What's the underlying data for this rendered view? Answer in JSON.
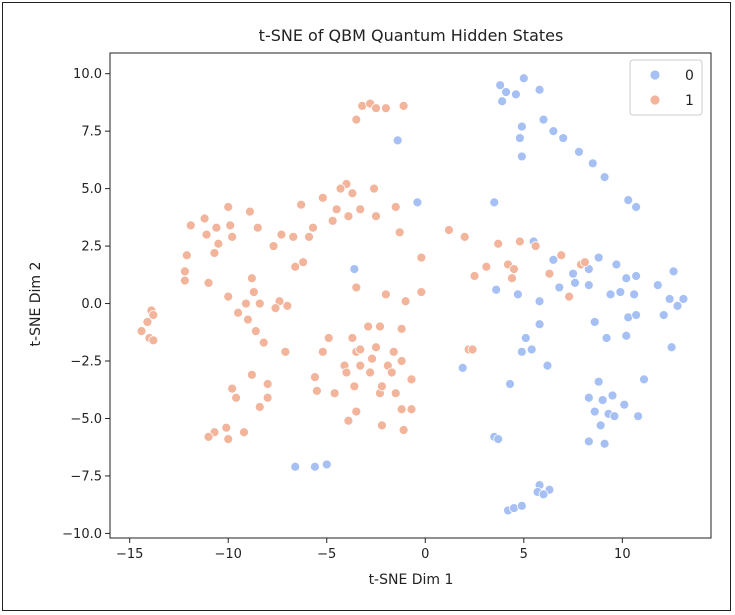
{
  "chart_data": {
    "type": "scatter",
    "title": "t-SNE of QBM Quantum Hidden States",
    "xlabel": "t-SNE Dim 1",
    "ylabel": "t-SNE Dim 2",
    "xlim": [
      -16.0,
      14.5
    ],
    "ylim": [
      -10.2,
      10.9
    ],
    "xticks": [
      -15,
      -10,
      -5,
      0,
      5,
      10
    ],
    "xtick_labels": [
      "−15",
      "−10",
      "−5",
      "0",
      "5",
      "10"
    ],
    "yticks": [
      -10.0,
      -7.5,
      -5.0,
      -2.5,
      0.0,
      2.5,
      5.0,
      7.5,
      10.0
    ],
    "ytick_labels": [
      "−10.0",
      "−7.5",
      "−5.0",
      "−2.5",
      "0.0",
      "2.5",
      "5.0",
      "7.5",
      "10.0"
    ],
    "grid": false,
    "legend_position": "top-right",
    "series": [
      {
        "name": "0",
        "color": "#a6c0f4",
        "points": [
          [
            3.8,
            9.5
          ],
          [
            4.1,
            9.2
          ],
          [
            4.6,
            9.1
          ],
          [
            3.9,
            8.8
          ],
          [
            5.0,
            9.8
          ],
          [
            5.8,
            9.3
          ],
          [
            6.0,
            8.0
          ],
          [
            4.9,
            7.7
          ],
          [
            6.5,
            7.5
          ],
          [
            7.0,
            7.2
          ],
          [
            4.8,
            7.2
          ],
          [
            4.9,
            6.4
          ],
          [
            7.8,
            6.6
          ],
          [
            8.5,
            6.1
          ],
          [
            9.1,
            5.5
          ],
          [
            10.3,
            4.5
          ],
          [
            10.7,
            4.2
          ],
          [
            3.5,
            4.4
          ],
          [
            5.5,
            2.7
          ],
          [
            6.5,
            1.9
          ],
          [
            7.5,
            1.3
          ],
          [
            8.3,
            1.5
          ],
          [
            8.8,
            2.0
          ],
          [
            9.7,
            1.7
          ],
          [
            10.2,
            1.1
          ],
          [
            10.7,
            1.2
          ],
          [
            12.6,
            1.4
          ],
          [
            6.8,
            0.7
          ],
          [
            7.6,
            0.9
          ],
          [
            8.3,
            0.8
          ],
          [
            9.4,
            0.4
          ],
          [
            9.9,
            0.5
          ],
          [
            10.6,
            0.4
          ],
          [
            11.8,
            0.8
          ],
          [
            12.4,
            0.2
          ],
          [
            12.8,
            -0.1
          ],
          [
            13.1,
            0.2
          ],
          [
            3.6,
            0.6
          ],
          [
            4.7,
            0.4
          ],
          [
            5.8,
            0.1
          ],
          [
            10.3,
            -0.6
          ],
          [
            10.7,
            -0.5
          ],
          [
            12.1,
            -0.5
          ],
          [
            8.6,
            -0.8
          ],
          [
            5.8,
            -0.9
          ],
          [
            5.1,
            -1.5
          ],
          [
            9.2,
            -1.5
          ],
          [
            10.2,
            -1.4
          ],
          [
            12.5,
            -1.9
          ],
          [
            4.9,
            -2.1
          ],
          [
            5.4,
            -2.0
          ],
          [
            6.2,
            -2.7
          ],
          [
            1.9,
            -2.8
          ],
          [
            11.1,
            -3.3
          ],
          [
            8.8,
            -3.4
          ],
          [
            4.3,
            -3.5
          ],
          [
            8.3,
            -4.1
          ],
          [
            9.0,
            -4.2
          ],
          [
            9.5,
            -4.0
          ],
          [
            10.1,
            -4.4
          ],
          [
            8.6,
            -4.7
          ],
          [
            9.3,
            -4.8
          ],
          [
            9.6,
            -4.9
          ],
          [
            10.8,
            -4.9
          ],
          [
            8.9,
            -5.3
          ],
          [
            3.5,
            -5.8
          ],
          [
            3.7,
            -5.9
          ],
          [
            8.3,
            -6.0
          ],
          [
            9.1,
            -6.1
          ],
          [
            -6.6,
            -7.1
          ],
          [
            -5.6,
            -7.1
          ],
          [
            -5.0,
            -7.0
          ],
          [
            5.8,
            -7.9
          ],
          [
            5.7,
            -8.2
          ],
          [
            6.3,
            -8.1
          ],
          [
            6.0,
            -8.3
          ],
          [
            4.2,
            -9.0
          ],
          [
            4.5,
            -8.9
          ],
          [
            4.9,
            -8.8
          ],
          [
            -1.4,
            7.1
          ],
          [
            -0.4,
            4.4
          ],
          [
            -3.6,
            1.5
          ]
        ]
      },
      {
        "name": "1",
        "color": "#f2b49b",
        "points": [
          [
            -3.2,
            8.6
          ],
          [
            -2.8,
            8.7
          ],
          [
            -2.5,
            8.5
          ],
          [
            -2.0,
            8.5
          ],
          [
            -1.1,
            8.6
          ],
          [
            -3.5,
            8.0
          ],
          [
            -4.0,
            5.2
          ],
          [
            -4.3,
            5.0
          ],
          [
            -3.7,
            4.8
          ],
          [
            -2.6,
            5.0
          ],
          [
            -5.2,
            4.6
          ],
          [
            -6.3,
            4.3
          ],
          [
            -4.5,
            4.1
          ],
          [
            -3.3,
            4.1
          ],
          [
            -1.5,
            4.2
          ],
          [
            -3.9,
            3.8
          ],
          [
            -4.7,
            3.6
          ],
          [
            -2.5,
            3.8
          ],
          [
            -5.7,
            3.3
          ],
          [
            -1.3,
            3.1
          ],
          [
            -10.0,
            4.2
          ],
          [
            -8.9,
            4.0
          ],
          [
            -11.2,
            3.7
          ],
          [
            -10.6,
            3.3
          ],
          [
            -9.9,
            3.4
          ],
          [
            -8.5,
            3.3
          ],
          [
            -11.1,
            3.0
          ],
          [
            -9.8,
            2.9
          ],
          [
            -11.9,
            3.4
          ],
          [
            -7.3,
            3.0
          ],
          [
            -6.7,
            2.9
          ],
          [
            -5.9,
            2.9
          ],
          [
            -10.5,
            2.6
          ],
          [
            -7.7,
            2.5
          ],
          [
            -10.7,
            2.2
          ],
          [
            -12.1,
            2.1
          ],
          [
            -6.2,
            1.8
          ],
          [
            -6.6,
            1.6
          ],
          [
            -12.2,
            1.4
          ],
          [
            -12.2,
            1.0
          ],
          [
            -11.0,
            0.9
          ],
          [
            -8.8,
            1.1
          ],
          [
            -3.5,
            0.7
          ],
          [
            -0.2,
            2.0
          ],
          [
            -8.7,
            0.5
          ],
          [
            -10.0,
            0.3
          ],
          [
            -8.4,
            0.0
          ],
          [
            -7.4,
            0.1
          ],
          [
            -7.0,
            -0.1
          ],
          [
            -9.1,
            0.0
          ],
          [
            -7.6,
            -0.2
          ],
          [
            -2.0,
            0.4
          ],
          [
            -1.0,
            0.1
          ],
          [
            -0.2,
            0.5
          ],
          [
            -9.5,
            -0.4
          ],
          [
            -9.0,
            -0.7
          ],
          [
            -8.6,
            -1.2
          ],
          [
            -8.2,
            -1.7
          ],
          [
            -7.1,
            -2.1
          ],
          [
            -4.9,
            -1.5
          ],
          [
            -3.7,
            -1.5
          ],
          [
            -2.9,
            -1.0
          ],
          [
            -2.3,
            -1.0
          ],
          [
            -1.2,
            -1.1
          ],
          [
            -3.5,
            -2.1
          ],
          [
            -2.5,
            -1.9
          ],
          [
            -2.7,
            -2.4
          ],
          [
            -1.6,
            -2.1
          ],
          [
            -1.9,
            -2.7
          ],
          [
            -3.3,
            -2.7
          ],
          [
            -4.1,
            -2.7
          ],
          [
            -5.2,
            -2.1
          ],
          [
            -5.6,
            -3.2
          ],
          [
            -4.0,
            -3.0
          ],
          [
            -2.8,
            -3.0
          ],
          [
            -1.7,
            -3.0
          ],
          [
            -1.2,
            -2.5
          ],
          [
            -0.7,
            -3.3
          ],
          [
            -3.6,
            -3.6
          ],
          [
            -5.5,
            -3.8
          ],
          [
            -4.6,
            -3.9
          ],
          [
            -2.3,
            -3.9
          ],
          [
            -2.2,
            -3.6
          ],
          [
            -1.5,
            -3.9
          ],
          [
            -8.8,
            -3.1
          ],
          [
            -9.8,
            -3.7
          ],
          [
            -9.6,
            -4.1
          ],
          [
            -8.0,
            -3.5
          ],
          [
            -8.0,
            -4.1
          ],
          [
            -8.4,
            -4.5
          ],
          [
            -3.5,
            -4.7
          ],
          [
            -3.9,
            -5.1
          ],
          [
            -1.2,
            -4.6
          ],
          [
            -0.7,
            -4.6
          ],
          [
            -2.2,
            -5.3
          ],
          [
            -1.1,
            -5.5
          ],
          [
            -10.7,
            -5.6
          ],
          [
            -11.0,
            -5.8
          ],
          [
            -10.1,
            -5.4
          ],
          [
            -10.0,
            -5.9
          ],
          [
            -9.2,
            -5.6
          ],
          [
            -14.1,
            -0.8
          ],
          [
            -13.9,
            -0.3
          ],
          [
            -13.8,
            -0.5
          ],
          [
            -14.4,
            -1.2
          ],
          [
            -14.0,
            -1.5
          ],
          [
            -13.8,
            -1.6
          ],
          [
            1.2,
            3.2
          ],
          [
            2.0,
            2.9
          ],
          [
            3.7,
            2.6
          ],
          [
            4.8,
            2.7
          ],
          [
            5.6,
            2.5
          ],
          [
            2.5,
            1.2
          ],
          [
            3.1,
            1.6
          ],
          [
            4.2,
            1.7
          ],
          [
            4.4,
            1.1
          ],
          [
            4.5,
            1.5
          ],
          [
            6.3,
            1.3
          ],
          [
            6.9,
            2.1
          ],
          [
            7.9,
            1.7
          ],
          [
            8.1,
            1.8
          ],
          [
            7.3,
            0.3
          ],
          [
            2.2,
            -2.0
          ],
          [
            2.4,
            -2.0
          ],
          [
            -3.3,
            -2.0
          ]
        ]
      }
    ]
  }
}
